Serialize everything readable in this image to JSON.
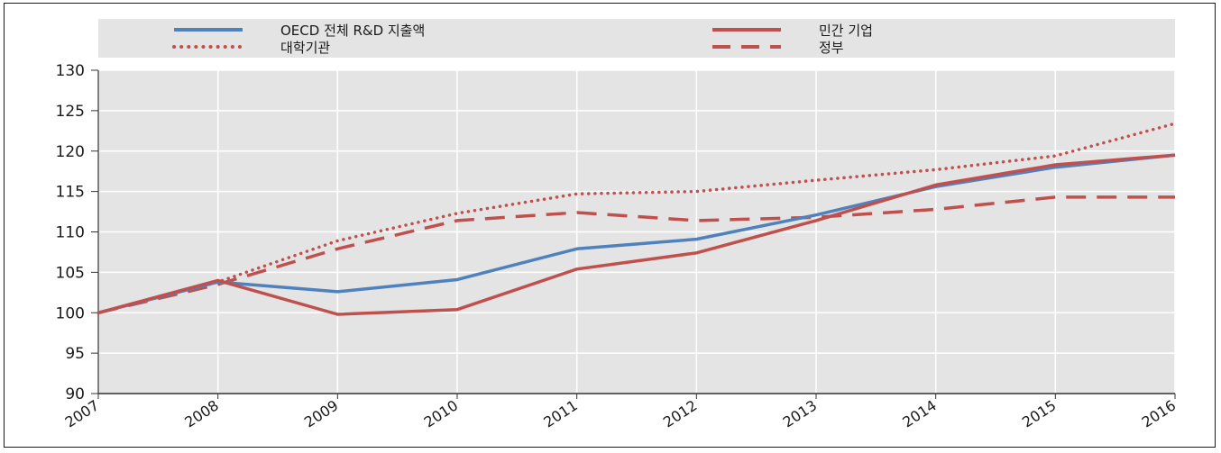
{
  "chart_data": {
    "type": "line",
    "title": "",
    "xlabel": "",
    "ylabel": "",
    "x": [
      "2007",
      "2008",
      "2009",
      "2010",
      "2011",
      "2012",
      "2013",
      "2014",
      "2015",
      "2016"
    ],
    "ylim": [
      90,
      130
    ],
    "yticks": [
      90,
      95,
      100,
      105,
      110,
      115,
      120,
      125,
      130
    ],
    "grid": true,
    "legend_position": "top",
    "series": [
      {
        "name": "OECD 전체 R&D 지출액",
        "color": "#4f81bd",
        "style": "solid",
        "values": [
          100,
          103.8,
          102.6,
          104.1,
          107.9,
          109.1,
          112.1,
          115.6,
          118.0,
          119.5
        ]
      },
      {
        "name": "민간 기업",
        "color": "#c0504d",
        "style": "solid",
        "values": [
          100,
          104.0,
          99.8,
          100.4,
          105.4,
          107.4,
          111.4,
          115.8,
          118.3,
          119.5
        ]
      },
      {
        "name": "대학기관",
        "color": "#c0504d",
        "style": "dotted",
        "values": [
          100,
          103.8,
          108.9,
          112.3,
          114.7,
          115.0,
          116.4,
          117.7,
          119.4,
          123.4
        ]
      },
      {
        "name": "정부",
        "color": "#c0504d",
        "style": "dashed",
        "values": [
          100,
          103.5,
          107.9,
          111.4,
          112.4,
          111.4,
          111.8,
          112.8,
          114.3,
          114.3
        ]
      }
    ]
  }
}
